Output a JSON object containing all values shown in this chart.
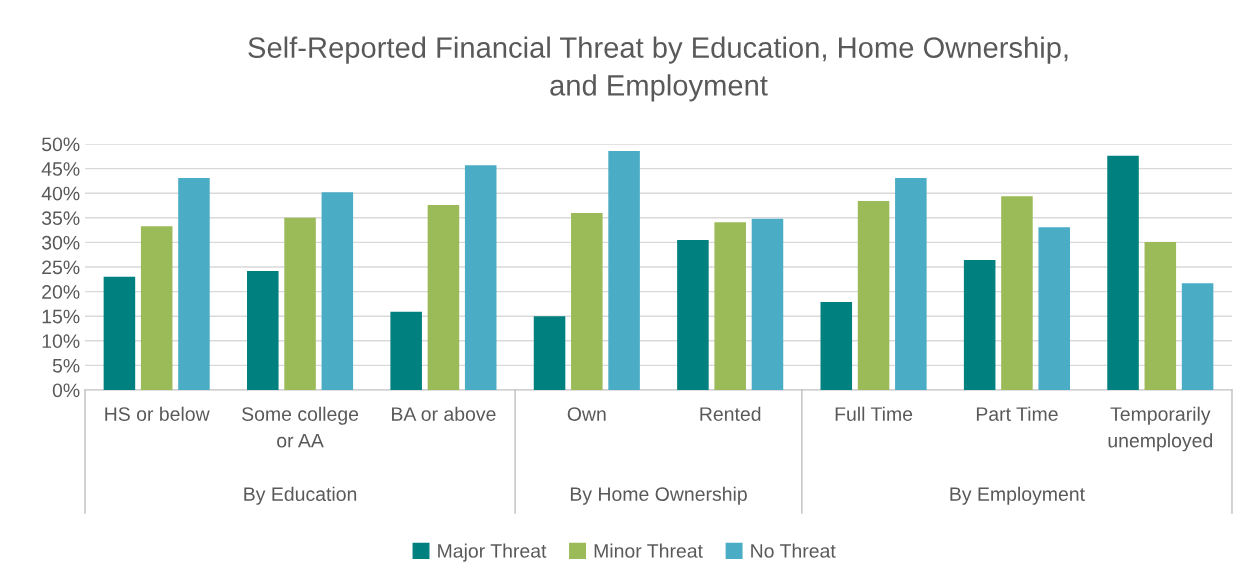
{
  "chart_data": {
    "type": "bar",
    "title": "Self-Reported Financial Threat by Education, Home Ownership,\nand Employment",
    "categories": [
      "HS or below",
      "Some college\nor AA",
      "BA or above",
      "Own",
      "Rented",
      "Full Time",
      "Part Time",
      "Temporarily\nunemployed"
    ],
    "series": [
      {
        "name": "Major Threat",
        "color": "#00807f",
        "values": [
          23.0,
          24.2,
          15.9,
          15.0,
          30.5,
          17.9,
          26.4,
          47.6
        ]
      },
      {
        "name": "Minor Threat",
        "color": "#9bbb59",
        "values": [
          33.3,
          35.0,
          37.6,
          36.0,
          34.1,
          38.4,
          39.4,
          30.1
        ]
      },
      {
        "name": "No Threat",
        "color": "#4bacc6",
        "values": [
          43.1,
          40.2,
          45.7,
          48.6,
          34.8,
          43.1,
          33.1,
          21.7
        ]
      }
    ],
    "annotations": [
      "By Education",
      "By Home Ownership",
      "By Employment"
    ],
    "ylim": [
      0,
      50
    ],
    "yticks": [
      {
        "value": 0,
        "label": "0%"
      },
      {
        "value": 5,
        "label": "5%"
      },
      {
        "value": 10,
        "label": "10%"
      },
      {
        "value": 15,
        "label": "15%"
      },
      {
        "value": 20,
        "label": "20%"
      },
      {
        "value": 25,
        "label": "25%"
      },
      {
        "value": 30,
        "label": "30%"
      },
      {
        "value": 35,
        "label": "35%"
      },
      {
        "value": 40,
        "label": "40%"
      },
      {
        "value": 45,
        "label": "45%"
      },
      {
        "value": 50,
        "label": "50%"
      }
    ],
    "grid": "y",
    "legend": "bottom"
  }
}
